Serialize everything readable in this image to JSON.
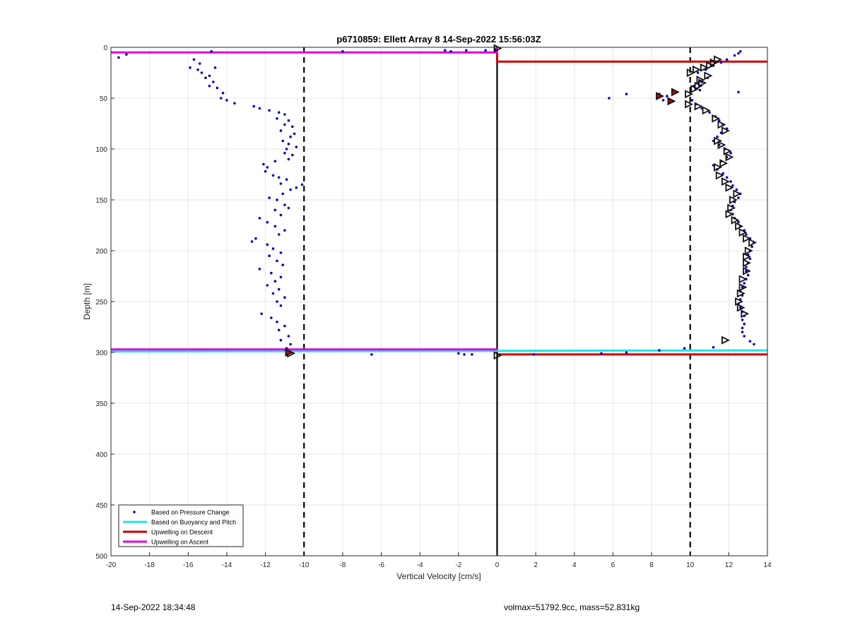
{
  "chart_data": {
    "type": "scatter",
    "title": "p6710859: Ellett Array 8 14-Sep-2022 15:56:03Z",
    "xlabel": "Vertical Velocity [cm/s]",
    "ylabel": "Depth [m]",
    "xlim": [
      -20,
      14
    ],
    "ylim": [
      0,
      500
    ],
    "y_reversed": true,
    "grid": true,
    "legend_placement": "bottom-left",
    "x_ticks": [
      "-20",
      "-18",
      "-16",
      "-14",
      "-12",
      "-10",
      "-8",
      "-6",
      "-4",
      "-2",
      "0",
      "2",
      "4",
      "6",
      "8",
      "10",
      "12",
      "14"
    ],
    "y_ticks": [
      "0",
      "50",
      "100",
      "150",
      "200",
      "250",
      "300",
      "350",
      "400",
      "450",
      "500"
    ],
    "legend": [
      {
        "name": "Based on Pressure Change",
        "color": "#0000cc",
        "kind": "marker"
      },
      {
        "name": "Based on Buoyancy and Pitch",
        "color": "#22e5e5",
        "kind": "line"
      },
      {
        "name": "Upwelling on Descent",
        "color": "#cc0000",
        "kind": "line"
      },
      {
        "name": "Upwelling on Ascent",
        "color": "#e000e0",
        "kind": "line"
      }
    ],
    "reference_lines": {
      "dashed_x": [
        -10,
        10
      ],
      "solid_x": [
        0
      ]
    },
    "series": [
      {
        "name": "Based on Pressure Change",
        "color": "#0000cc",
        "points": [
          [
            -19.6,
            10
          ],
          [
            -19.2,
            7
          ],
          [
            -14.8,
            4
          ],
          [
            -15.7,
            12
          ],
          [
            -15.4,
            16
          ],
          [
            -15.9,
            20
          ],
          [
            -15.3,
            25
          ],
          [
            -15.5,
            22
          ],
          [
            -14.9,
            28
          ],
          [
            -14.6,
            20
          ],
          [
            -15.1,
            30
          ],
          [
            -14.7,
            34
          ],
          [
            -14.9,
            38
          ],
          [
            -14.5,
            40
          ],
          [
            -14.2,
            45
          ],
          [
            -14.3,
            50
          ],
          [
            -14.0,
            52
          ],
          [
            -13.6,
            55
          ],
          [
            -12.6,
            58
          ],
          [
            -12.3,
            60
          ],
          [
            -11.8,
            62
          ],
          [
            -11.3,
            64
          ],
          [
            -11.0,
            66
          ],
          [
            -11.4,
            70
          ],
          [
            -10.8,
            72
          ],
          [
            -11.0,
            76
          ],
          [
            -10.6,
            78
          ],
          [
            -11.2,
            82
          ],
          [
            -10.5,
            85
          ],
          [
            -10.7,
            88
          ],
          [
            -11.1,
            92
          ],
          [
            -10.8,
            95
          ],
          [
            -10.4,
            98
          ],
          [
            -10.9,
            100
          ],
          [
            -11.0,
            104
          ],
          [
            -10.6,
            106
          ],
          [
            -10.8,
            110
          ],
          [
            -11.5,
            112
          ],
          [
            -12.1,
            115
          ],
          [
            -11.9,
            118
          ],
          [
            -12.0,
            122
          ],
          [
            -11.6,
            126
          ],
          [
            -11.3,
            128
          ],
          [
            -10.9,
            130
          ],
          [
            -11.2,
            134
          ],
          [
            -10.1,
            135
          ],
          [
            -10.4,
            138
          ],
          [
            -10.7,
            140
          ],
          [
            -11.1,
            144
          ],
          [
            -11.8,
            148
          ],
          [
            -11.4,
            150
          ],
          [
            -11.0,
            155
          ],
          [
            -10.8,
            158
          ],
          [
            -11.5,
            160
          ],
          [
            -11.2,
            165
          ],
          [
            -12.3,
            168
          ],
          [
            -11.9,
            172
          ],
          [
            -11.5,
            176
          ],
          [
            -11.0,
            180
          ],
          [
            -11.3,
            184
          ],
          [
            -12.5,
            188
          ],
          [
            -12.7,
            191
          ],
          [
            -11.9,
            194
          ],
          [
            -11.6,
            198
          ],
          [
            -11.2,
            202
          ],
          [
            -11.8,
            205
          ],
          [
            -11.4,
            210
          ],
          [
            -11.1,
            214
          ],
          [
            -12.3,
            218
          ],
          [
            -11.7,
            222
          ],
          [
            -11.2,
            226
          ],
          [
            -11.5,
            230
          ],
          [
            -11.9,
            234
          ],
          [
            -11.3,
            238
          ],
          [
            -11.6,
            242
          ],
          [
            -11.0,
            246
          ],
          [
            -11.4,
            250
          ],
          [
            -11.2,
            254
          ],
          [
            -12.2,
            262
          ],
          [
            -11.7,
            266
          ],
          [
            -11.4,
            270
          ],
          [
            -11.0,
            274
          ],
          [
            -11.3,
            278
          ],
          [
            -10.8,
            284
          ],
          [
            -11.2,
            288
          ],
          [
            -10.7,
            292
          ],
          [
            -10.9,
            296
          ],
          [
            -10.8,
            300
          ],
          [
            -8.0,
            4
          ],
          [
            -2.7,
            3
          ],
          [
            -2.4,
            4
          ],
          [
            -1.6,
            3
          ],
          [
            -0.6,
            3
          ],
          [
            -0.1,
            2
          ],
          [
            -6.5,
            302
          ],
          [
            -2.0,
            301
          ],
          [
            -1.7,
            302
          ],
          [
            -1.3,
            302
          ],
          [
            1.9,
            302
          ],
          [
            5.4,
            301
          ],
          [
            6.7,
            300
          ],
          [
            8.4,
            298
          ],
          [
            9.7,
            296
          ],
          [
            11.2,
            295
          ],
          [
            12.6,
            4
          ],
          [
            12.5,
            6
          ],
          [
            12.3,
            8
          ],
          [
            11.9,
            12
          ],
          [
            11.6,
            15
          ],
          [
            11.2,
            18
          ],
          [
            10.8,
            22
          ],
          [
            10.4,
            25
          ],
          [
            10.9,
            30
          ],
          [
            10.6,
            34
          ],
          [
            10.2,
            38
          ],
          [
            10.5,
            42
          ],
          [
            12.5,
            44
          ],
          [
            8.4,
            46
          ],
          [
            8.8,
            48
          ],
          [
            8.6,
            52
          ],
          [
            6.7,
            46
          ],
          [
            5.8,
            50
          ],
          [
            10.1,
            52
          ],
          [
            10.3,
            56
          ],
          [
            10.6,
            60
          ],
          [
            11.0,
            64
          ],
          [
            11.3,
            68
          ],
          [
            11.5,
            72
          ],
          [
            11.7,
            76
          ],
          [
            11.9,
            80
          ],
          [
            11.6,
            84
          ],
          [
            11.4,
            88
          ],
          [
            11.2,
            92
          ],
          [
            11.5,
            96
          ],
          [
            11.8,
            100
          ],
          [
            12.1,
            104
          ],
          [
            11.9,
            108
          ],
          [
            11.6,
            112
          ],
          [
            11.2,
            116
          ],
          [
            11.4,
            120
          ],
          [
            11.7,
            124
          ],
          [
            11.9,
            128
          ],
          [
            12.1,
            132
          ],
          [
            12.2,
            136
          ],
          [
            12.4,
            140
          ],
          [
            12.6,
            144
          ],
          [
            12.5,
            148
          ],
          [
            12.3,
            152
          ],
          [
            12.2,
            156
          ],
          [
            12.1,
            160
          ],
          [
            12.2,
            164
          ],
          [
            12.3,
            168
          ],
          [
            12.5,
            172
          ],
          [
            12.6,
            176
          ],
          [
            12.8,
            180
          ],
          [
            12.9,
            184
          ],
          [
            13.1,
            188
          ],
          [
            13.3,
            192
          ],
          [
            13.2,
            196
          ],
          [
            13.1,
            200
          ],
          [
            13.0,
            204
          ],
          [
            13.1,
            208
          ],
          [
            13.0,
            212
          ],
          [
            12.9,
            216
          ],
          [
            12.9,
            220
          ],
          [
            13.0,
            224
          ],
          [
            12.9,
            228
          ],
          [
            12.8,
            232
          ],
          [
            12.7,
            236
          ],
          [
            12.6,
            240
          ],
          [
            12.7,
            244
          ],
          [
            12.6,
            248
          ],
          [
            12.5,
            252
          ],
          [
            12.6,
            256
          ],
          [
            12.7,
            260
          ],
          [
            12.8,
            264
          ],
          [
            12.7,
            268
          ],
          [
            12.8,
            272
          ],
          [
            12.7,
            276
          ],
          [
            12.7,
            280
          ],
          [
            12.8,
            284
          ],
          [
            13.1,
            289
          ],
          [
            13.3,
            292
          ]
        ]
      },
      {
        "name": "Based on Buoyancy and Pitch",
        "color": "#22e5e5",
        "lines": [
          [
            [
              -20,
              299
            ],
            [
              14,
              298
            ]
          ]
        ]
      },
      {
        "name": "Upwelling on Descent",
        "color": "#cc0000",
        "lines": [
          [
            [
              0,
              0
            ],
            [
              0,
              14
            ],
            [
              14,
              14
            ]
          ],
          [
            [
              0,
              302
            ],
            [
              14,
              302
            ]
          ]
        ]
      },
      {
        "name": "Upwelling on Ascent",
        "color": "#e000e0",
        "lines": [
          [
            [
              -20,
              5
            ],
            [
              0,
              5
            ],
            [
              0,
              0
            ]
          ],
          [
            [
              -20,
              297
            ],
            [
              0,
              297
            ]
          ]
        ]
      },
      {
        "color": "#111111",
        "markers": [
          [
            11.4,
            12
          ],
          [
            11.2,
            15
          ],
          [
            11.0,
            18
          ],
          [
            10.7,
            20
          ],
          [
            10.3,
            22
          ],
          [
            10.0,
            25
          ],
          [
            10.9,
            28
          ],
          [
            10.5,
            32
          ],
          [
            10.6,
            35
          ],
          [
            10.4,
            38
          ],
          [
            10.2,
            41
          ],
          [
            9.9,
            46
          ],
          [
            9.9,
            56
          ],
          [
            10.4,
            58
          ],
          [
            10.8,
            62
          ],
          [
            11.3,
            70
          ],
          [
            11.6,
            76
          ],
          [
            11.8,
            82
          ],
          [
            11.4,
            92
          ],
          [
            11.6,
            96
          ],
          [
            11.9,
            102
          ],
          [
            12.0,
            108
          ],
          [
            11.7,
            114
          ],
          [
            11.4,
            118
          ],
          [
            11.5,
            126
          ],
          [
            11.8,
            132
          ],
          [
            12.0,
            138
          ],
          [
            12.4,
            144
          ],
          [
            12.2,
            150
          ],
          [
            12.1,
            158
          ],
          [
            12.0,
            164
          ],
          [
            12.3,
            170
          ],
          [
            12.5,
            176
          ],
          [
            12.7,
            182
          ],
          [
            12.9,
            188
          ],
          [
            13.2,
            192
          ],
          [
            13.0,
            200
          ],
          [
            12.9,
            206
          ],
          [
            12.9,
            212
          ],
          [
            12.9,
            220
          ],
          [
            12.7,
            228
          ],
          [
            12.7,
            236
          ],
          [
            12.6,
            242
          ],
          [
            12.5,
            250
          ],
          [
            12.6,
            256
          ],
          [
            12.8,
            262
          ],
          [
            11.8,
            288
          ],
          [
            0,
            1
          ],
          [
            0,
            303
          ],
          [
            -10.7,
            301
          ]
        ]
      },
      {
        "color": "#cc0000",
        "markers": [
          [
            8.4,
            48
          ],
          [
            9.2,
            44
          ],
          [
            9.0,
            53
          ],
          [
            -10.8,
            300
          ]
        ]
      }
    ]
  },
  "footer": {
    "timestamp": "14-Sep-2022 18:34:48",
    "summary": "volmax=51792.9cc, mass=52.831kg"
  }
}
